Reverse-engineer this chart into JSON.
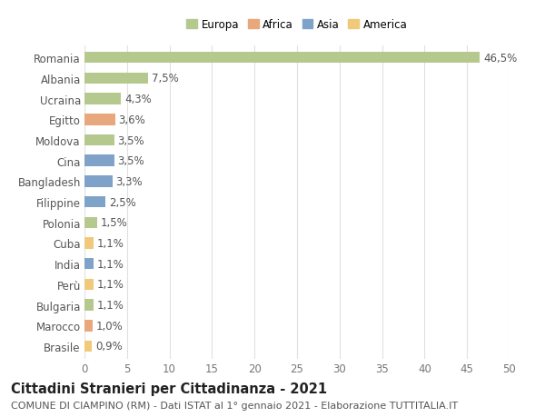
{
  "categories": [
    "Romania",
    "Albania",
    "Ucraina",
    "Egitto",
    "Moldova",
    "Cina",
    "Bangladesh",
    "Filippine",
    "Polonia",
    "Cuba",
    "India",
    "Perù",
    "Bulgaria",
    "Marocco",
    "Brasile"
  ],
  "values": [
    46.5,
    7.5,
    4.3,
    3.6,
    3.5,
    3.5,
    3.3,
    2.5,
    1.5,
    1.1,
    1.1,
    1.1,
    1.1,
    1.0,
    0.9
  ],
  "labels": [
    "46,5%",
    "7,5%",
    "4,3%",
    "3,6%",
    "3,5%",
    "3,5%",
    "3,3%",
    "2,5%",
    "1,5%",
    "1,1%",
    "1,1%",
    "1,1%",
    "1,1%",
    "1,0%",
    "0,9%"
  ],
  "bar_colors": [
    "#b5c98e",
    "#b5c98e",
    "#b5c98e",
    "#e8a87c",
    "#b5c98e",
    "#7fa3c8",
    "#7fa3c8",
    "#7fa3c8",
    "#b5c98e",
    "#f0c97a",
    "#7fa3c8",
    "#f0c97a",
    "#b5c98e",
    "#e8a87c",
    "#f0c97a"
  ],
  "legend_labels": [
    "Europa",
    "Africa",
    "Asia",
    "America"
  ],
  "legend_colors": [
    "#b5c98e",
    "#e8a87c",
    "#7fa3c8",
    "#f0c97a"
  ],
  "xlim": [
    0,
    50
  ],
  "xticks": [
    0,
    5,
    10,
    15,
    20,
    25,
    30,
    35,
    40,
    45,
    50
  ],
  "title": "Cittadini Stranieri per Cittadinanza - 2021",
  "subtitle": "COMUNE DI CIAMPINO (RM) - Dati ISTAT al 1° gennaio 2021 - Elaborazione TUTTITALIA.IT",
  "bg_color": "#ffffff",
  "grid_color": "#e0e0e0",
  "bar_height": 0.55,
  "label_fontsize": 8.5,
  "tick_fontsize": 8.5,
  "title_fontsize": 10.5,
  "subtitle_fontsize": 8.0
}
